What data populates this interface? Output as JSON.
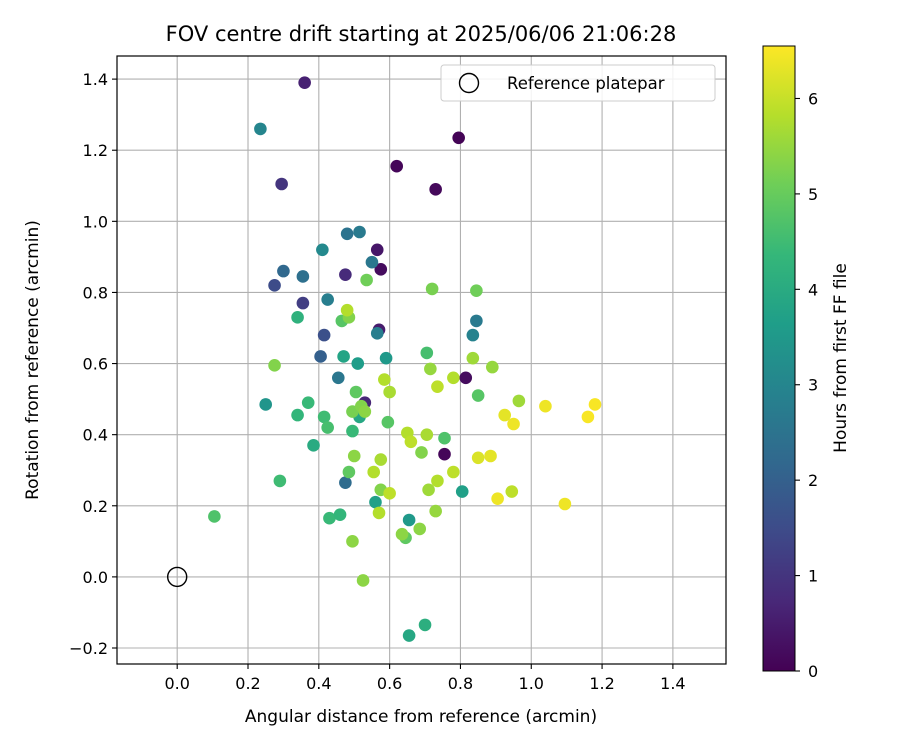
{
  "chart_data": {
    "type": "scatter",
    "title": "FOV centre drift starting at 2025/06/06 21:06:28",
    "xlabel": "Angular distance from reference (arcmin)",
    "ylabel": "Rotation from reference (arcmin)",
    "xlim": [
      -0.17,
      1.55
    ],
    "ylim": [
      -0.245,
      1.465
    ],
    "xticks": [
      0.0,
      0.2,
      0.4,
      0.6,
      0.8,
      1.0,
      1.2,
      1.4
    ],
    "xtick_labels": [
      "0.0",
      "0.2",
      "0.4",
      "0.6",
      "0.8",
      "1.0",
      "1.2",
      "1.4"
    ],
    "yticks": [
      -0.2,
      0.0,
      0.2,
      0.4,
      0.6,
      0.8,
      1.0,
      1.2,
      1.4
    ],
    "ytick_labels": [
      "−0.2",
      "0.0",
      "0.2",
      "0.4",
      "0.6",
      "0.8",
      "1.0",
      "1.2",
      "1.4"
    ],
    "grid": true,
    "colormap": "viridis",
    "colorbar": {
      "label": "Hours from first FF file",
      "range": [
        0,
        6.55
      ],
      "ticks": [
        0,
        1,
        2,
        3,
        4,
        5,
        6
      ],
      "tick_labels": [
        "0",
        "1",
        "2",
        "3",
        "4",
        "5",
        "6"
      ]
    },
    "legend": {
      "position": "top-right",
      "entries": [
        {
          "label": "Reference platepar",
          "marker": "open-circle",
          "color": "#000000"
        }
      ]
    },
    "reference_point": {
      "x": 0.0,
      "y": 0.0
    },
    "points": [
      {
        "x": 0.36,
        "y": 1.39,
        "c": 0.6
      },
      {
        "x": 0.795,
        "y": 1.235,
        "c": 0.05
      },
      {
        "x": 0.62,
        "y": 1.155,
        "c": 0.1
      },
      {
        "x": 0.73,
        "y": 1.09,
        "c": 0.15
      },
      {
        "x": 0.565,
        "y": 0.92,
        "c": 0.4
      },
      {
        "x": 0.575,
        "y": 0.865,
        "c": 0.2
      },
      {
        "x": 0.475,
        "y": 0.85,
        "c": 0.8
      },
      {
        "x": 0.57,
        "y": 0.695,
        "c": 0.5
      },
      {
        "x": 0.815,
        "y": 0.56,
        "c": 0.2
      },
      {
        "x": 0.755,
        "y": 0.345,
        "c": 0.1
      },
      {
        "x": 0.53,
        "y": 0.49,
        "c": 0.7
      },
      {
        "x": 0.295,
        "y": 1.105,
        "c": 1.0
      },
      {
        "x": 0.275,
        "y": 0.82,
        "c": 1.5
      },
      {
        "x": 0.355,
        "y": 0.77,
        "c": 1.2
      },
      {
        "x": 0.415,
        "y": 0.68,
        "c": 1.6
      },
      {
        "x": 0.405,
        "y": 0.62,
        "c": 2.0
      },
      {
        "x": 0.3,
        "y": 0.86,
        "c": 2.2
      },
      {
        "x": 0.355,
        "y": 0.845,
        "c": 2.4
      },
      {
        "x": 0.235,
        "y": 1.26,
        "c": 3.0
      },
      {
        "x": 0.48,
        "y": 0.965,
        "c": 2.5
      },
      {
        "x": 0.515,
        "y": 0.97,
        "c": 2.7
      },
      {
        "x": 0.55,
        "y": 0.885,
        "c": 2.6
      },
      {
        "x": 0.41,
        "y": 0.92,
        "c": 3.1
      },
      {
        "x": 0.425,
        "y": 0.78,
        "c": 2.8
      },
      {
        "x": 0.455,
        "y": 0.56,
        "c": 2.6
      },
      {
        "x": 0.475,
        "y": 0.265,
        "c": 2.3
      },
      {
        "x": 0.845,
        "y": 0.72,
        "c": 2.7
      },
      {
        "x": 0.835,
        "y": 0.68,
        "c": 2.9
      },
      {
        "x": 0.565,
        "y": 0.685,
        "c": 2.8
      },
      {
        "x": 0.25,
        "y": 0.485,
        "c": 3.4
      },
      {
        "x": 0.47,
        "y": 0.62,
        "c": 3.8
      },
      {
        "x": 0.51,
        "y": 0.6,
        "c": 3.6
      },
      {
        "x": 0.59,
        "y": 0.615,
        "c": 3.5
      },
      {
        "x": 0.515,
        "y": 0.45,
        "c": 3.9
      },
      {
        "x": 0.385,
        "y": 0.37,
        "c": 4.0
      },
      {
        "x": 0.56,
        "y": 0.21,
        "c": 3.7
      },
      {
        "x": 0.655,
        "y": 0.16,
        "c": 3.5
      },
      {
        "x": 0.805,
        "y": 0.24,
        "c": 3.7
      },
      {
        "x": 0.655,
        "y": -0.165,
        "c": 3.9
      },
      {
        "x": 0.7,
        "y": -0.135,
        "c": 4.1
      },
      {
        "x": 0.34,
        "y": 0.73,
        "c": 4.2
      },
      {
        "x": 0.37,
        "y": 0.49,
        "c": 4.4
      },
      {
        "x": 0.34,
        "y": 0.455,
        "c": 4.3
      },
      {
        "x": 0.415,
        "y": 0.45,
        "c": 4.5
      },
      {
        "x": 0.425,
        "y": 0.42,
        "c": 4.6
      },
      {
        "x": 0.495,
        "y": 0.41,
        "c": 4.4
      },
      {
        "x": 0.43,
        "y": 0.165,
        "c": 4.4
      },
      {
        "x": 0.46,
        "y": 0.175,
        "c": 4.3
      },
      {
        "x": 0.29,
        "y": 0.27,
        "c": 4.5
      },
      {
        "x": 0.105,
        "y": 0.17,
        "c": 4.7
      },
      {
        "x": 0.465,
        "y": 0.72,
        "c": 4.8
      },
      {
        "x": 0.505,
        "y": 0.52,
        "c": 4.9
      },
      {
        "x": 0.595,
        "y": 0.435,
        "c": 4.8
      },
      {
        "x": 0.485,
        "y": 0.295,
        "c": 4.9
      },
      {
        "x": 0.705,
        "y": 0.63,
        "c": 4.6
      },
      {
        "x": 0.645,
        "y": 0.11,
        "c": 4.9
      },
      {
        "x": 0.755,
        "y": 0.39,
        "c": 4.7
      },
      {
        "x": 0.85,
        "y": 0.51,
        "c": 4.8
      },
      {
        "x": 0.535,
        "y": 0.835,
        "c": 5.1
      },
      {
        "x": 0.72,
        "y": 0.81,
        "c": 5.2
      },
      {
        "x": 0.845,
        "y": 0.805,
        "c": 5.1
      },
      {
        "x": 0.485,
        "y": 0.73,
        "c": 5.3
      },
      {
        "x": 0.275,
        "y": 0.595,
        "c": 5.3
      },
      {
        "x": 0.495,
        "y": 0.465,
        "c": 5.2
      },
      {
        "x": 0.52,
        "y": 0.48,
        "c": 5.3
      },
      {
        "x": 0.53,
        "y": 0.465,
        "c": 5.4
      },
      {
        "x": 0.5,
        "y": 0.34,
        "c": 5.4
      },
      {
        "x": 0.495,
        "y": 0.1,
        "c": 5.4
      },
      {
        "x": 0.525,
        "y": -0.01,
        "c": 5.4
      },
      {
        "x": 0.575,
        "y": 0.245,
        "c": 5.3
      },
      {
        "x": 0.635,
        "y": 0.12,
        "c": 5.4
      },
      {
        "x": 0.685,
        "y": 0.135,
        "c": 5.4
      },
      {
        "x": 0.69,
        "y": 0.35,
        "c": 5.3
      },
      {
        "x": 0.715,
        "y": 0.585,
        "c": 5.5
      },
      {
        "x": 0.835,
        "y": 0.615,
        "c": 5.6
      },
      {
        "x": 0.89,
        "y": 0.59,
        "c": 5.5
      },
      {
        "x": 0.965,
        "y": 0.495,
        "c": 5.6
      },
      {
        "x": 0.73,
        "y": 0.185,
        "c": 5.5
      },
      {
        "x": 0.71,
        "y": 0.245,
        "c": 5.6
      },
      {
        "x": 0.48,
        "y": 0.75,
        "c": 5.8
      },
      {
        "x": 0.585,
        "y": 0.555,
        "c": 5.8
      },
      {
        "x": 0.6,
        "y": 0.52,
        "c": 5.7
      },
      {
        "x": 0.575,
        "y": 0.33,
        "c": 5.7
      },
      {
        "x": 0.555,
        "y": 0.295,
        "c": 5.8
      },
      {
        "x": 0.57,
        "y": 0.18,
        "c": 5.8
      },
      {
        "x": 0.6,
        "y": 0.235,
        "c": 5.9
      },
      {
        "x": 0.65,
        "y": 0.405,
        "c": 5.8
      },
      {
        "x": 0.66,
        "y": 0.38,
        "c": 5.9
      },
      {
        "x": 0.705,
        "y": 0.4,
        "c": 5.7
      },
      {
        "x": 0.735,
        "y": 0.535,
        "c": 5.9
      },
      {
        "x": 0.78,
        "y": 0.56,
        "c": 5.8
      },
      {
        "x": 0.735,
        "y": 0.27,
        "c": 5.8
      },
      {
        "x": 0.78,
        "y": 0.295,
        "c": 5.9
      },
      {
        "x": 0.945,
        "y": 0.24,
        "c": 5.9
      },
      {
        "x": 0.85,
        "y": 0.335,
        "c": 6.2
      },
      {
        "x": 0.885,
        "y": 0.34,
        "c": 6.3
      },
      {
        "x": 0.905,
        "y": 0.22,
        "c": 6.4
      },
      {
        "x": 0.925,
        "y": 0.455,
        "c": 6.3
      },
      {
        "x": 0.95,
        "y": 0.43,
        "c": 6.4
      },
      {
        "x": 1.04,
        "y": 0.48,
        "c": 6.4
      },
      {
        "x": 1.095,
        "y": 0.205,
        "c": 6.4
      },
      {
        "x": 1.16,
        "y": 0.45,
        "c": 6.5
      },
      {
        "x": 1.18,
        "y": 0.485,
        "c": 6.5
      }
    ]
  }
}
